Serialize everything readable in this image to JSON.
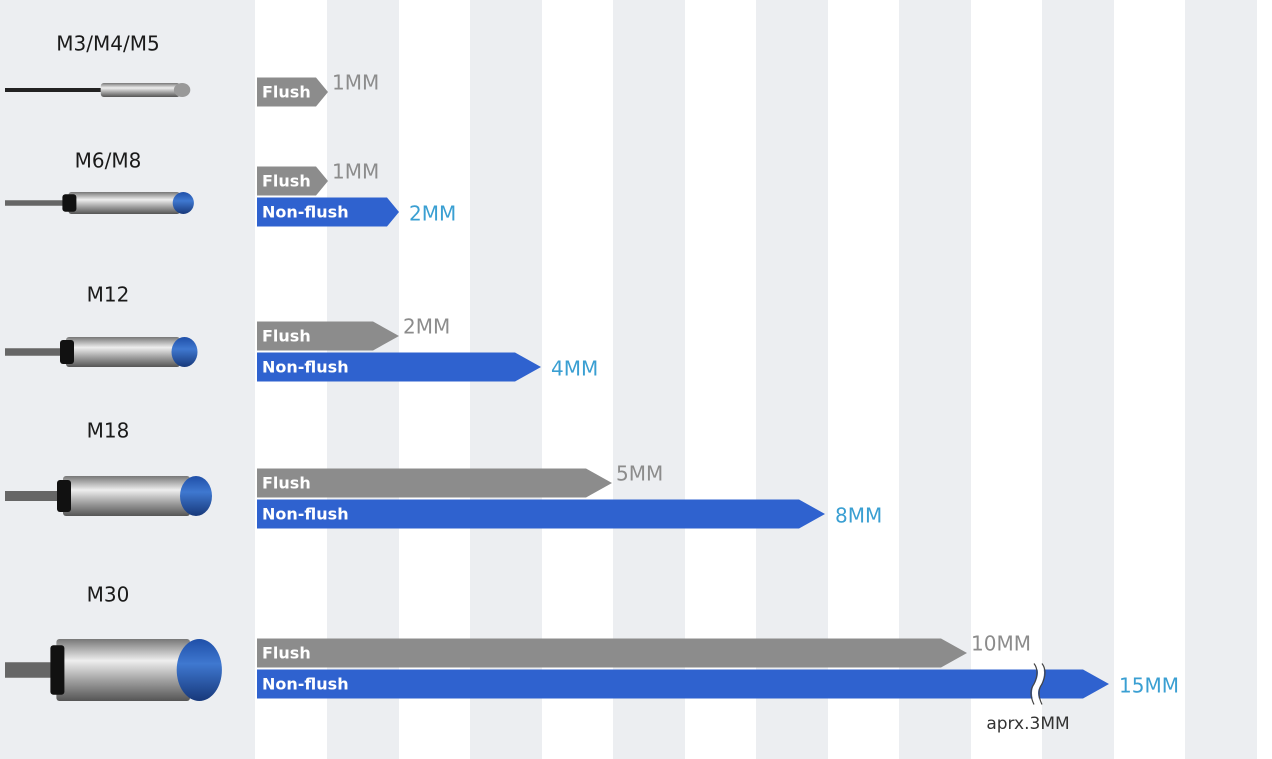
{
  "chart_data": {
    "type": "bar",
    "orientation": "horizontal",
    "categories": [
      "M3/M4/M5",
      "M6/M8",
      "M12",
      "M18",
      "M30"
    ],
    "series": [
      {
        "name": "Flush",
        "color": "#8c8c8c",
        "label_color": "#8c8c8c",
        "values": [
          1,
          1,
          2,
          5,
          10
        ],
        "value_labels": [
          "1MM",
          "1MM",
          "2MM",
          "5MM",
          "10MM"
        ]
      },
      {
        "name": "Non-flush",
        "color": "#2f62cf",
        "label_color": "#3a9fd2",
        "values": [
          null,
          2,
          4,
          8,
          15
        ],
        "value_labels": [
          null,
          "2MM",
          "4MM",
          "8MM",
          "15MM"
        ]
      }
    ],
    "axis_break": {
      "start": 11,
      "end": 14,
      "label": "aprx.3MM"
    }
  }
}
